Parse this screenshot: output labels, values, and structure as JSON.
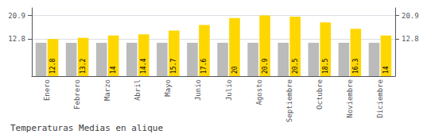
{
  "chart_data": {
    "type": "bar",
    "title": "Temperaturas Medias en alique",
    "categories": [
      "Enero",
      "Febrero",
      "Marzo",
      "Abril",
      "Mayo",
      "Junio",
      "Julio",
      "Agosto",
      "Septiembre",
      "Octubre",
      "Noviembre",
      "Diciembre"
    ],
    "series": [
      {
        "color": "#BBBBBB",
        "values": [
          11.5,
          11.5,
          11.5,
          11.5,
          11.5,
          11.5,
          11.5,
          11.5,
          11.5,
          11.5,
          11.5,
          11.5
        ]
      },
      {
        "color": "#FFD700",
        "data_labels": true,
        "values": [
          12.8,
          13.2,
          14.0,
          14.4,
          15.7,
          17.6,
          20.0,
          20.9,
          20.5,
          18.5,
          16.3,
          14.0
        ]
      }
    ],
    "ylim": [
      0.0,
      23.5
    ],
    "yticks": [
      12.8,
      20.9
    ],
    "y2lim": [
      0.0,
      23.5
    ],
    "y2ticks": [
      12.8,
      20.9
    ],
    "grid": true
  }
}
